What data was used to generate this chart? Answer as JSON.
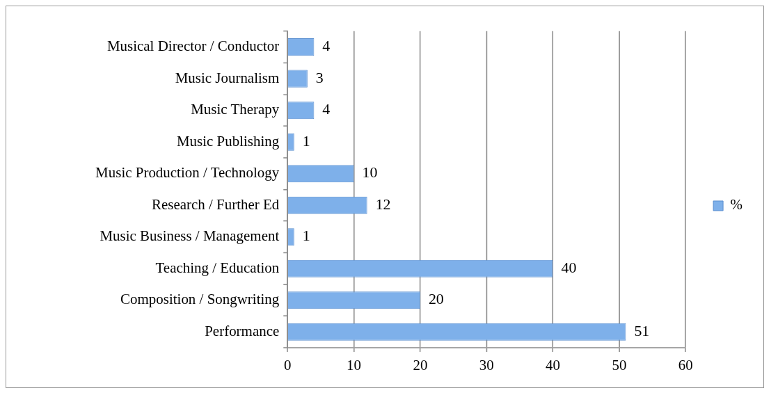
{
  "chart_data": {
    "type": "bar",
    "orientation": "horizontal",
    "categories": [
      "Musical Director / Conductor",
      "Music Journalism",
      "Music Therapy",
      "Music Publishing",
      "Music Production / Technology",
      "Research / Further Ed",
      "Music Business / Management",
      "Teaching / Education",
      "Composition / Songwriting",
      "Performance"
    ],
    "series": [
      {
        "name": "%",
        "color": "#7eb0ea",
        "values": [
          4,
          3,
          4,
          1,
          10,
          12,
          1,
          40,
          20,
          51
        ]
      }
    ],
    "xlim": [
      0,
      60
    ],
    "xticks": [
      0,
      10,
      20,
      30,
      40,
      50,
      60
    ],
    "grid": "x",
    "legend": "right",
    "data_labels": true
  }
}
